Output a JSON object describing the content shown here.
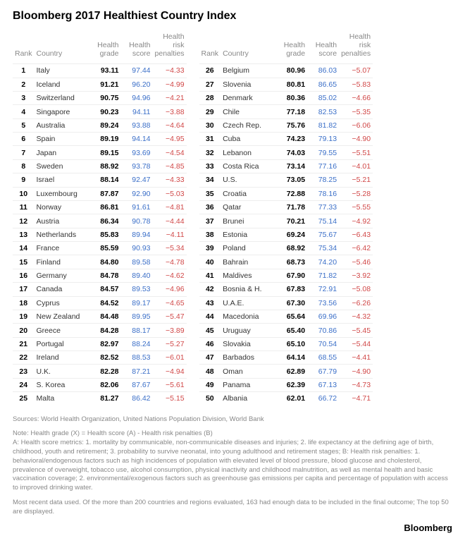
{
  "title": "Bloomberg 2017 Healthiest Country Index",
  "columns": {
    "rank": "Rank",
    "country": "Country",
    "grade": "Health grade",
    "score": "Health score",
    "penalty": "Health risk penalties"
  },
  "colors": {
    "score": "#3b6fc8",
    "penalty": "#d14848",
    "header_text": "#888888",
    "border": "#eeeeee"
  },
  "rows": [
    {
      "rank": 1,
      "country": "Italy",
      "grade": "93.11",
      "score": "97.44",
      "penalty": "−4.33"
    },
    {
      "rank": 2,
      "country": "Iceland",
      "grade": "91.21",
      "score": "96.20",
      "penalty": "−4.99"
    },
    {
      "rank": 3,
      "country": "Switzerland",
      "grade": "90.75",
      "score": "94.96",
      "penalty": "−4.21"
    },
    {
      "rank": 4,
      "country": "Singapore",
      "grade": "90.23",
      "score": "94.11",
      "penalty": "−3.88"
    },
    {
      "rank": 5,
      "country": "Australia",
      "grade": "89.24",
      "score": "93.88",
      "penalty": "−4.64"
    },
    {
      "rank": 6,
      "country": "Spain",
      "grade": "89.19",
      "score": "94.14",
      "penalty": "−4.95"
    },
    {
      "rank": 7,
      "country": "Japan",
      "grade": "89.15",
      "score": "93.69",
      "penalty": "−4.54"
    },
    {
      "rank": 8,
      "country": "Sweden",
      "grade": "88.92",
      "score": "93.78",
      "penalty": "−4.85"
    },
    {
      "rank": 9,
      "country": "Israel",
      "grade": "88.14",
      "score": "92.47",
      "penalty": "−4.33"
    },
    {
      "rank": 10,
      "country": "Luxembourg",
      "grade": "87.87",
      "score": "92.90",
      "penalty": "−5.03"
    },
    {
      "rank": 11,
      "country": "Norway",
      "grade": "86.81",
      "score": "91.61",
      "penalty": "−4.81"
    },
    {
      "rank": 12,
      "country": "Austria",
      "grade": "86.34",
      "score": "90.78",
      "penalty": "−4.44"
    },
    {
      "rank": 13,
      "country": "Netherlands",
      "grade": "85.83",
      "score": "89.94",
      "penalty": "−4.11"
    },
    {
      "rank": 14,
      "country": "France",
      "grade": "85.59",
      "score": "90.93",
      "penalty": "−5.34"
    },
    {
      "rank": 15,
      "country": "Finland",
      "grade": "84.80",
      "score": "89.58",
      "penalty": "−4.78"
    },
    {
      "rank": 16,
      "country": "Germany",
      "grade": "84.78",
      "score": "89.40",
      "penalty": "−4.62"
    },
    {
      "rank": 17,
      "country": "Canada",
      "grade": "84.57",
      "score": "89.53",
      "penalty": "−4.96"
    },
    {
      "rank": 18,
      "country": "Cyprus",
      "grade": "84.52",
      "score": "89.17",
      "penalty": "−4.65"
    },
    {
      "rank": 19,
      "country": "New Zealand",
      "grade": "84.48",
      "score": "89.95",
      "penalty": "−5.47"
    },
    {
      "rank": 20,
      "country": "Greece",
      "grade": "84.28",
      "score": "88.17",
      "penalty": "−3.89"
    },
    {
      "rank": 21,
      "country": "Portugal",
      "grade": "82.97",
      "score": "88.24",
      "penalty": "−5.27"
    },
    {
      "rank": 22,
      "country": "Ireland",
      "grade": "82.52",
      "score": "88.53",
      "penalty": "−6.01"
    },
    {
      "rank": 23,
      "country": "U.K.",
      "grade": "82.28",
      "score": "87.21",
      "penalty": "−4.94"
    },
    {
      "rank": 24,
      "country": "S. Korea",
      "grade": "82.06",
      "score": "87.67",
      "penalty": "−5.61"
    },
    {
      "rank": 25,
      "country": "Malta",
      "grade": "81.27",
      "score": "86.42",
      "penalty": "−5.15"
    },
    {
      "rank": 26,
      "country": "Belgium",
      "grade": "80.96",
      "score": "86.03",
      "penalty": "−5.07"
    },
    {
      "rank": 27,
      "country": "Slovenia",
      "grade": "80.81",
      "score": "86.65",
      "penalty": "−5.83"
    },
    {
      "rank": 28,
      "country": "Denmark",
      "grade": "80.36",
      "score": "85.02",
      "penalty": "−4.66"
    },
    {
      "rank": 29,
      "country": "Chile",
      "grade": "77.18",
      "score": "82.53",
      "penalty": "−5.35"
    },
    {
      "rank": 30,
      "country": "Czech Rep.",
      "grade": "75.76",
      "score": "81.82",
      "penalty": "−6.06"
    },
    {
      "rank": 31,
      "country": "Cuba",
      "grade": "74.23",
      "score": "79.13",
      "penalty": "−4.90"
    },
    {
      "rank": 32,
      "country": "Lebanon",
      "grade": "74.03",
      "score": "79.55",
      "penalty": "−5.51"
    },
    {
      "rank": 33,
      "country": "Costa Rica",
      "grade": "73.14",
      "score": "77.16",
      "penalty": "−4.01"
    },
    {
      "rank": 34,
      "country": "U.S.",
      "grade": "73.05",
      "score": "78.25",
      "penalty": "−5.21"
    },
    {
      "rank": 35,
      "country": "Croatia",
      "grade": "72.88",
      "score": "78.16",
      "penalty": "−5.28"
    },
    {
      "rank": 36,
      "country": "Qatar",
      "grade": "71.78",
      "score": "77.33",
      "penalty": "−5.55"
    },
    {
      "rank": 37,
      "country": "Brunei",
      "grade": "70.21",
      "score": "75.14",
      "penalty": "−4.92"
    },
    {
      "rank": 38,
      "country": "Estonia",
      "grade": "69.24",
      "score": "75.67",
      "penalty": "−6.43"
    },
    {
      "rank": 39,
      "country": "Poland",
      "grade": "68.92",
      "score": "75.34",
      "penalty": "−6.42"
    },
    {
      "rank": 40,
      "country": "Bahrain",
      "grade": "68.73",
      "score": "74.20",
      "penalty": "−5.46"
    },
    {
      "rank": 41,
      "country": "Maldives",
      "grade": "67.90",
      "score": "71.82",
      "penalty": "−3.92"
    },
    {
      "rank": 42,
      "country": "Bosnia & H.",
      "grade": "67.83",
      "score": "72.91",
      "penalty": "−5.08"
    },
    {
      "rank": 43,
      "country": "U.A.E.",
      "grade": "67.30",
      "score": "73.56",
      "penalty": "−6.26"
    },
    {
      "rank": 44,
      "country": "Macedonia",
      "grade": "65.64",
      "score": "69.96",
      "penalty": "−4.32"
    },
    {
      "rank": 45,
      "country": "Uruguay",
      "grade": "65.40",
      "score": "70.86",
      "penalty": "−5.45"
    },
    {
      "rank": 46,
      "country": "Slovakia",
      "grade": "65.10",
      "score": "70.54",
      "penalty": "−5.44"
    },
    {
      "rank": 47,
      "country": "Barbados",
      "grade": "64.14",
      "score": "68.55",
      "penalty": "−4.41"
    },
    {
      "rank": 48,
      "country": "Oman",
      "grade": "62.89",
      "score": "67.79",
      "penalty": "−4.90"
    },
    {
      "rank": 49,
      "country": "Panama",
      "grade": "62.39",
      "score": "67.13",
      "penalty": "−4.73"
    },
    {
      "rank": 50,
      "country": "Albania",
      "grade": "62.01",
      "score": "66.72",
      "penalty": "−4.71"
    }
  ],
  "notes": {
    "sources": "Sources: World Health Organization, United Nations Population Division, World Bank",
    "formula": "Note: Health grade (X) = Health score (A) - Health risk penalties (B)",
    "method": "A: Health score metrics: 1. mortality by communicable, non-communicable diseases and injuries; 2. life expectancy at the defining age of birth, childhood, youth and retirement; 3. probability to survive neonatal, into young adulthood and retirement stages; B: Health risk penalties: 1. behavioral/endogenous factors such as high incidences of population with elevated level of blood pressure, blood glucose and cholesterol, prevalence of overweight, tobacco use, alcohol consumption, physical inactivity and childhood malnutrition, as well as mental health and basic vaccination coverage; 2. environmental/exogenous factors such as greenhouse gas emissions per capita and percentage of population with access to improved drinking water.",
    "recent": "Most recent data used. Of the more than 200 countries and regions evaluated, 163 had enough data to be included in the final outcome; The top 50 are displayed."
  },
  "footer": "Bloomberg"
}
